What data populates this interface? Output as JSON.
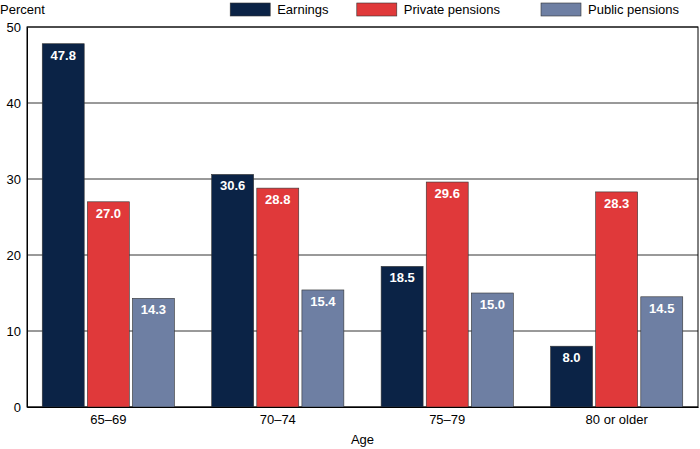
{
  "chart_data": {
    "type": "bar",
    "y_label": "Percent",
    "x_label": "Age",
    "categories": [
      "65–69",
      "70–74",
      "75–79",
      "80 or older"
    ],
    "series": [
      {
        "name": "Earnings",
        "color": "#0b2346",
        "values": [
          47.8,
          30.6,
          18.5,
          8.0
        ],
        "value_labels": [
          "47.8",
          "30.6",
          "18.5",
          "8.0"
        ]
      },
      {
        "name": "Private pensions",
        "color": "#e0393a",
        "values": [
          27.0,
          28.8,
          29.6,
          28.3
        ],
        "value_labels": [
          "27.0",
          "28.8",
          "29.6",
          "28.3"
        ]
      },
      {
        "name": "Public pensions",
        "color": "#6e7fa3",
        "values": [
          14.3,
          15.4,
          15.0,
          14.5
        ],
        "value_labels": [
          "14.3",
          "15.4",
          "15.0",
          "14.5"
        ]
      }
    ],
    "ylim": [
      0,
      50
    ],
    "yticks": [
      0,
      10,
      20,
      30,
      40,
      50
    ],
    "grid": true,
    "legend": "top-right",
    "data_labels": true
  }
}
